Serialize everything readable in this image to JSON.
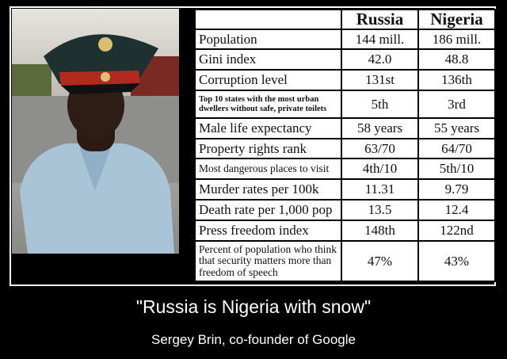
{
  "table": {
    "headers": [
      "",
      "Russia",
      "Nigeria"
    ],
    "rows": [
      {
        "label": "Population",
        "russia": "144 mill.",
        "nigeria": "186 mill."
      },
      {
        "label": "Gini index",
        "russia": "42.0",
        "nigeria": "48.8"
      },
      {
        "label": "Corruption level",
        "russia": "131st",
        "nigeria": "136th"
      },
      {
        "label": "Top 10 states with the most urban dwellers without safe, private toilets",
        "russia": "5th",
        "nigeria": "3rd"
      },
      {
        "label": "Male life expectancy",
        "russia": "58 years",
        "nigeria": "55 years"
      },
      {
        "label": "Property rights rank",
        "russia": "63/70",
        "nigeria": "64/70"
      },
      {
        "label": "Most dangerous places to visit",
        "russia": "4th/10",
        "nigeria": "5th/10"
      },
      {
        "label": "Murder rates per 100k",
        "russia": "11.31",
        "nigeria": "9.79"
      },
      {
        "label": "Death rate per 1,000 pop",
        "russia": "13.5",
        "nigeria": "12.4"
      },
      {
        "label": "Press freedom index",
        "russia": "148th",
        "nigeria": "122nd"
      },
      {
        "label": "Percent of population who think that security matters more than freedom of speech",
        "russia": "47%",
        "nigeria": "43%"
      }
    ]
  },
  "caption": "\"Russia is Nigeria with snow\"",
  "credit": "Sergey Brin, co-founder of Google",
  "photo": {
    "subject": "officer-in-uniform-photo"
  }
}
